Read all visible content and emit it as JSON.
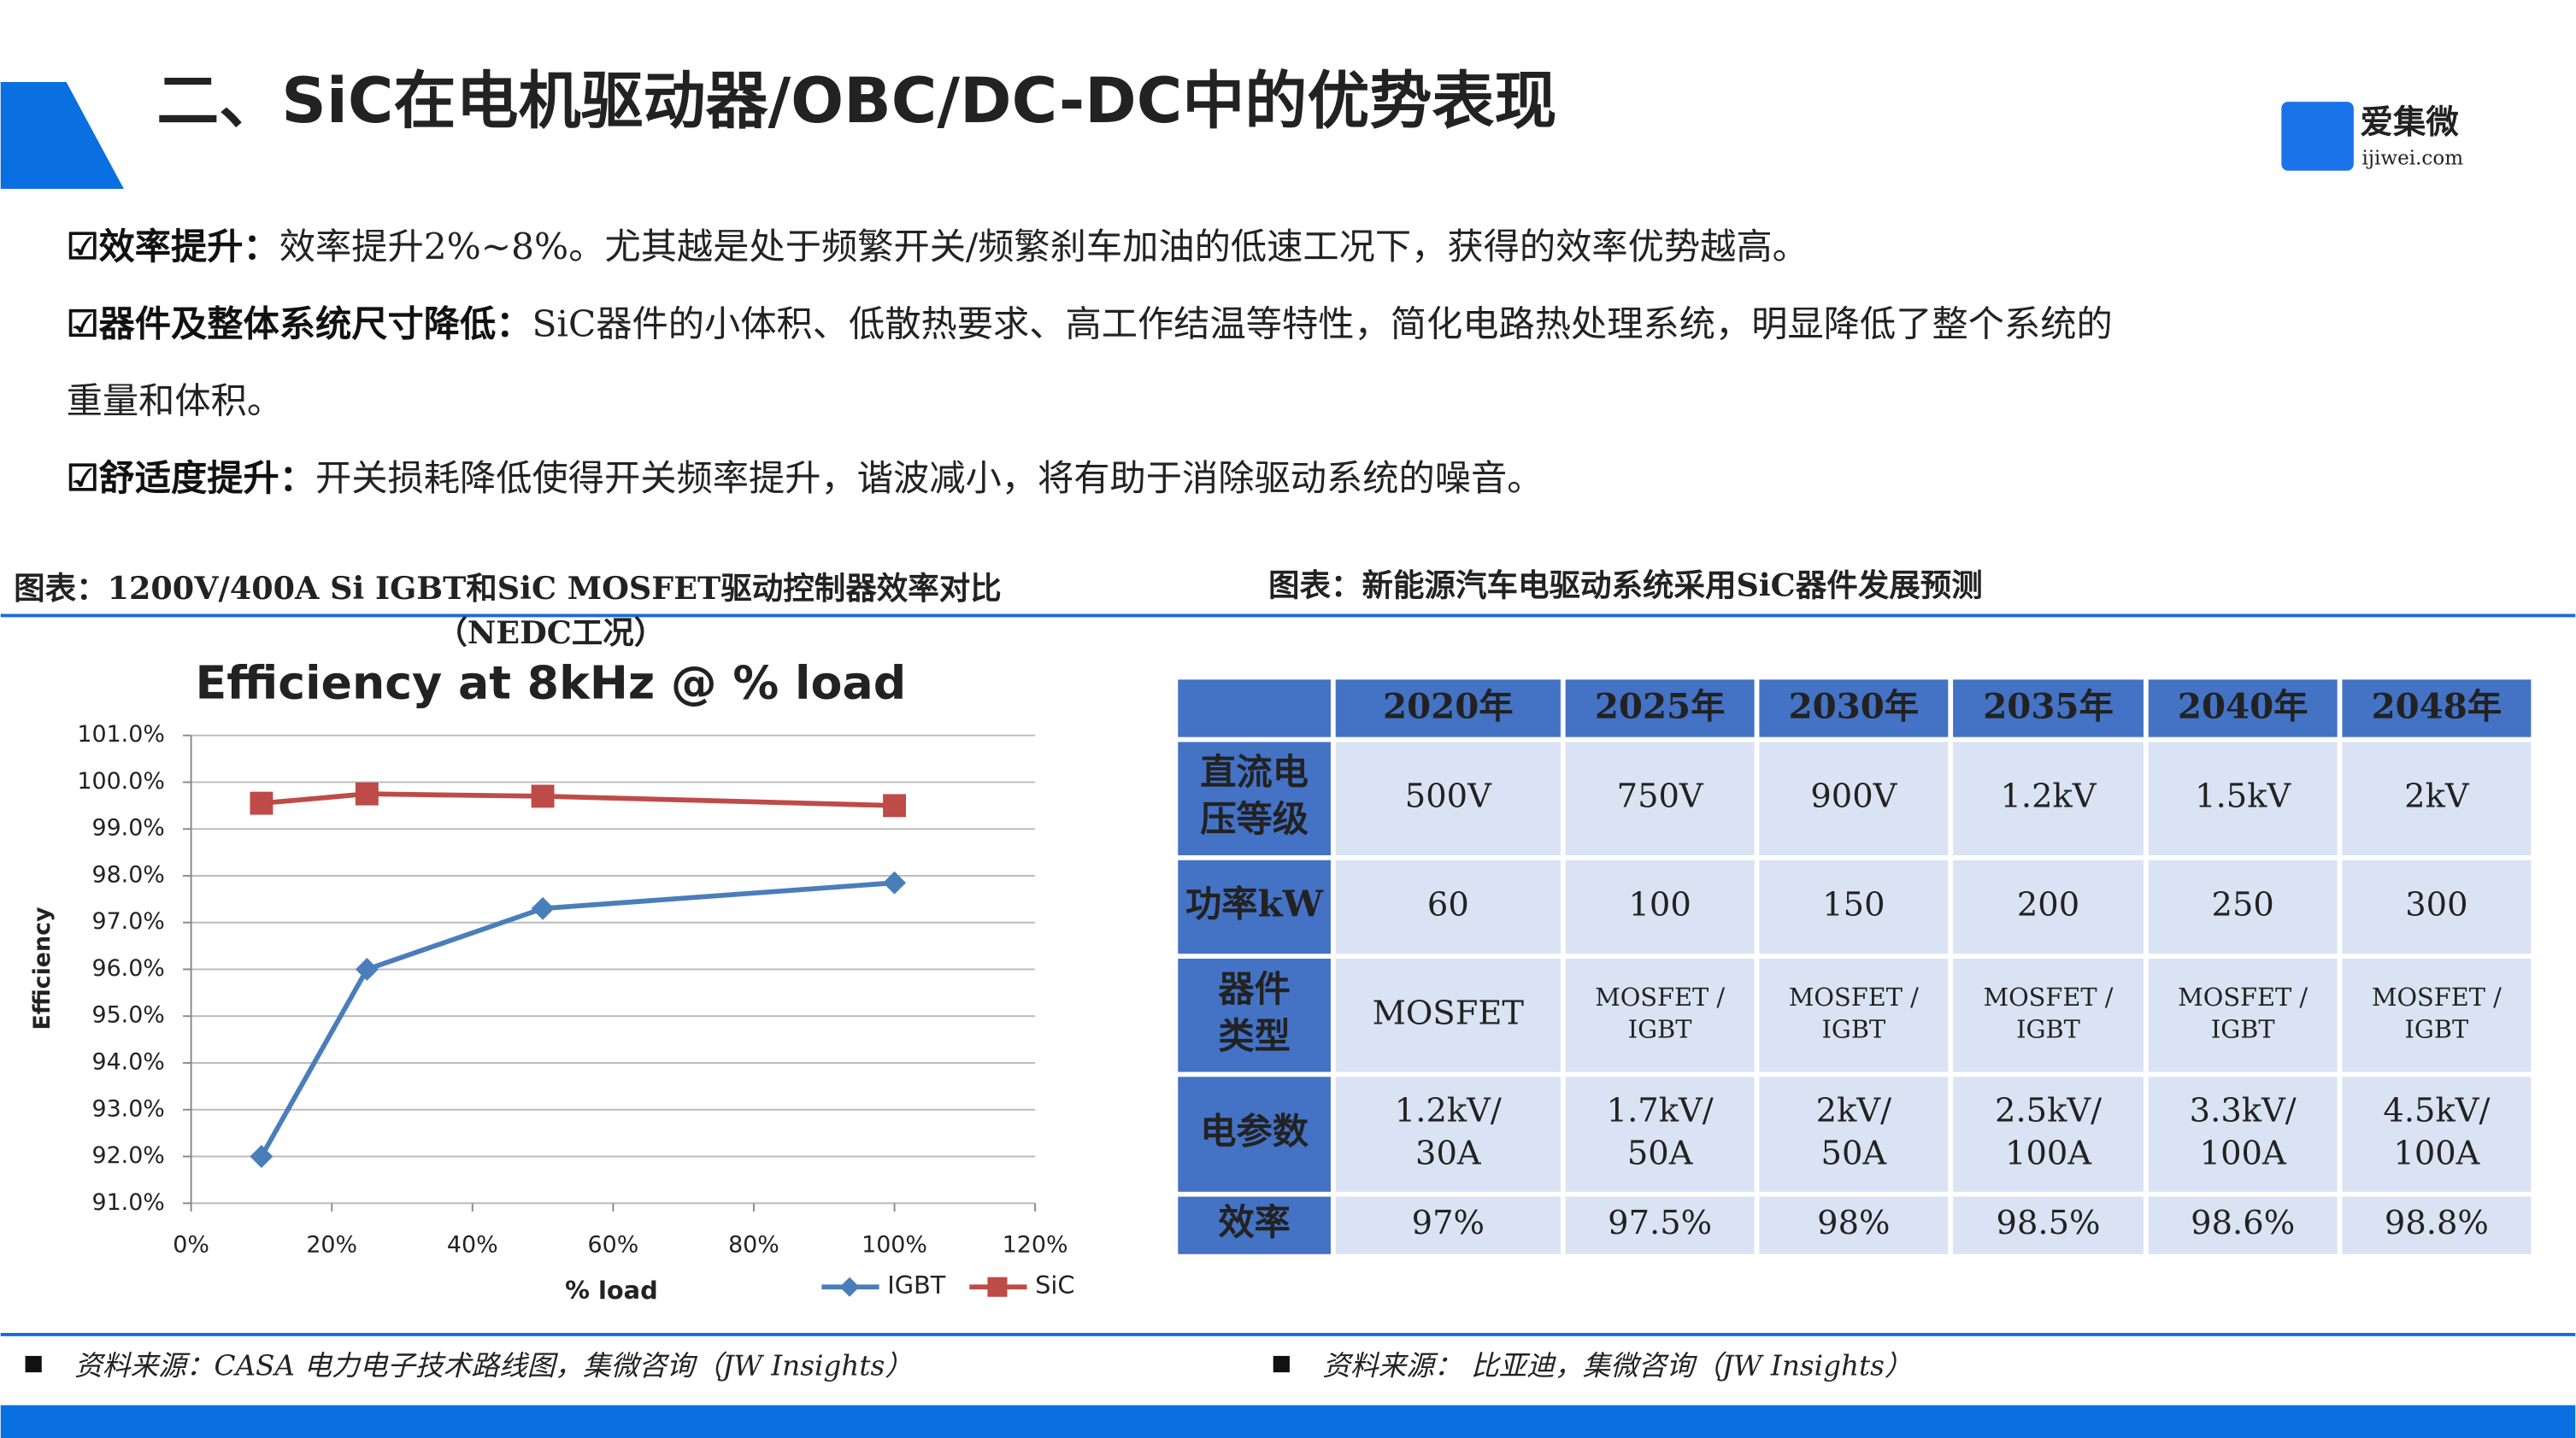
{
  "header": {
    "title": "二、SiC在电机驱动器/OBC/DC-DC中的优势表现",
    "logo": "爱集微",
    "logo_url": "ijiwei.com"
  },
  "bullets": [
    {
      "label": "☑效率提升：",
      "lines": [
        "效率提升2%~8%。尤其越是处于频繁开关/频繁刹车加油的低速工况下，获得的效率优势越高。"
      ]
    },
    {
      "label": "☑器件及整体系统尺寸降低：",
      "lines": [
        "SiC器件的小体积、低散热要求、高工作结温等特性，简化电路热处理系统，明显降低了整个系统的",
        "重量和体积。"
      ]
    },
    {
      "label": "☑舒适度提升：",
      "lines": [
        "开关损耗降低使得开关频率提升，谐波减小，将有助于消除驱动系统的噪音。"
      ]
    }
  ],
  "chart_caption": [
    "图表：1200V/400A Si IGBT和SiC MOSFET驱动控制器效率对比",
    "（NEDC工况）"
  ],
  "chart": {
    "type": "line",
    "title": "Efficiency at 8kHz @ % load",
    "x_label": "% load",
    "y_label": "Efficiency",
    "xlim": [
      0,
      120
    ],
    "xticks": [
      {
        "value": 0,
        "label": "0%"
      },
      {
        "value": 20,
        "label": "20%"
      },
      {
        "value": 40,
        "label": "40%"
      },
      {
        "value": 60,
        "label": "60%"
      },
      {
        "value": 80,
        "label": "80%"
      },
      {
        "value": 100,
        "label": "100%"
      },
      {
        "value": 120,
        "label": "120%"
      }
    ],
    "ylim": [
      91,
      101
    ],
    "yticks": [
      {
        "value": 91,
        "label": "91.0%"
      },
      {
        "value": 92,
        "label": "92.0%"
      },
      {
        "value": 93,
        "label": "93.0%"
      },
      {
        "value": 94,
        "label": "94.0%"
      },
      {
        "value": 95,
        "label": "95.0%"
      },
      {
        "value": 96,
        "label": "96.0%"
      },
      {
        "value": 97,
        "label": "97.0%"
      },
      {
        "value": 98,
        "label": "98.0%"
      },
      {
        "value": 99,
        "label": "99.0%"
      },
      {
        "value": 100,
        "label": "100.0%"
      },
      {
        "value": 101,
        "label": "101.0%"
      }
    ],
    "grid": true,
    "x": [
      10,
      25,
      50,
      100
    ],
    "series": [
      {
        "name": "IGBT",
        "color": "#4a7ebb",
        "marker": "diamond",
        "values": [
          92.0,
          96.0,
          97.3,
          97.85
        ]
      },
      {
        "name": "SiC",
        "color": "#be4b48",
        "marker": "square",
        "values": [
          99.55,
          99.75,
          99.7,
          99.5
        ]
      }
    ]
  },
  "table_caption": "图表：新能源汽车电驱动系统采用SiC器件发展预测",
  "table": {
    "header": [
      "2020年",
      "2025年",
      "2030年",
      "2035年",
      "2040年",
      "2048年"
    ],
    "rows": [
      {
        "label": [
          "直流电",
          "压等级"
        ],
        "cells": [
          [
            "500V"
          ],
          [
            "750V"
          ],
          [
            "900V"
          ],
          [
            "1.2kV"
          ],
          [
            "1.5kV"
          ],
          [
            "2kV"
          ]
        ]
      },
      {
        "label": [
          "功率kW"
        ],
        "cells": [
          [
            "60"
          ],
          [
            "100"
          ],
          [
            "150"
          ],
          [
            "200"
          ],
          [
            "250"
          ],
          [
            "300"
          ]
        ]
      },
      {
        "label": [
          "器件",
          "类型"
        ],
        "cells": [
          [
            "MOSFET"
          ],
          [
            "MOSFET /",
            "IGBT"
          ],
          [
            "MOSFET /",
            "IGBT"
          ],
          [
            "MOSFET /",
            "IGBT"
          ],
          [
            "MOSFET /",
            "IGBT"
          ],
          [
            "MOSFET /",
            "IGBT"
          ]
        ]
      },
      {
        "label": [
          "电参数"
        ],
        "cells": [
          [
            "1.2kV/",
            "30A"
          ],
          [
            "1.7kV/",
            "50A"
          ],
          [
            "2kV/",
            "50A"
          ],
          [
            "2.5kV/",
            "100A"
          ],
          [
            "3.3kV/",
            "100A"
          ],
          [
            "4.5kV/",
            "100A"
          ]
        ]
      },
      {
        "label": [
          "效率"
        ],
        "cells": [
          [
            "97%"
          ],
          [
            "97.5%"
          ],
          [
            "98%"
          ],
          [
            "98.5%"
          ],
          [
            "98.6%"
          ],
          [
            "98.8%"
          ]
        ]
      }
    ]
  },
  "sources": [
    "资料来源：CASA 电力电子技术路线图，集微咨询（JW Insights）",
    "资料来源： 比亚迪，集微咨询（JW Insights）"
  ]
}
